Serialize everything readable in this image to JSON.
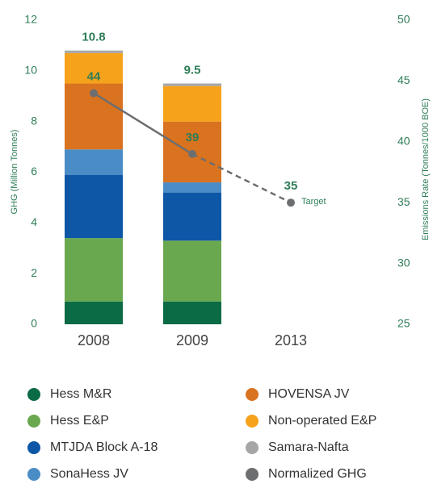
{
  "chart_data": {
    "type": "bar",
    "stacked": true,
    "ylabel": "GHG (Million Tonnes)",
    "y2label": "Emissions Rate (Tonnes/1000 BOE)",
    "categories": [
      "2008",
      "2009",
      "2013"
    ],
    "ylim": [
      0,
      12
    ],
    "yticks": [
      0,
      2,
      4,
      6,
      8,
      10,
      12
    ],
    "y2lim": [
      25,
      50
    ],
    "y2ticks": [
      25,
      30,
      35,
      40,
      45,
      50
    ],
    "totals": [
      10.8,
      9.5,
      null
    ],
    "series": [
      {
        "name": "Hess M&R",
        "color": "#0b6b45",
        "values": [
          0.9,
          0.9,
          null
        ]
      },
      {
        "name": "Hess E&P",
        "color": "#6aa84f",
        "values": [
          2.5,
          2.4,
          null
        ]
      },
      {
        "name": "MTJDA Block A-18",
        "color": "#0d57a6",
        "values": [
          2.5,
          1.9,
          null
        ]
      },
      {
        "name": "SonaHess JV",
        "color": "#4a8cc6",
        "values": [
          1.0,
          0.4,
          null
        ]
      },
      {
        "name": "HOVENSA JV",
        "color": "#d9731f",
        "values": [
          2.6,
          2.4,
          null
        ]
      },
      {
        "name": "Non-operated E&P",
        "color": "#f7a21b",
        "values": [
          1.2,
          1.4,
          null
        ]
      },
      {
        "name": "Samara-Nafta",
        "color": "#a6a6a6",
        "values": [
          0.1,
          0.1,
          null
        ]
      },
      {
        "name": "Normalized GHG",
        "color": "#6d6e70",
        "type": "line",
        "axis": "y2",
        "values": [
          44,
          39,
          35
        ]
      }
    ],
    "annotations": [
      "Target"
    ]
  }
}
